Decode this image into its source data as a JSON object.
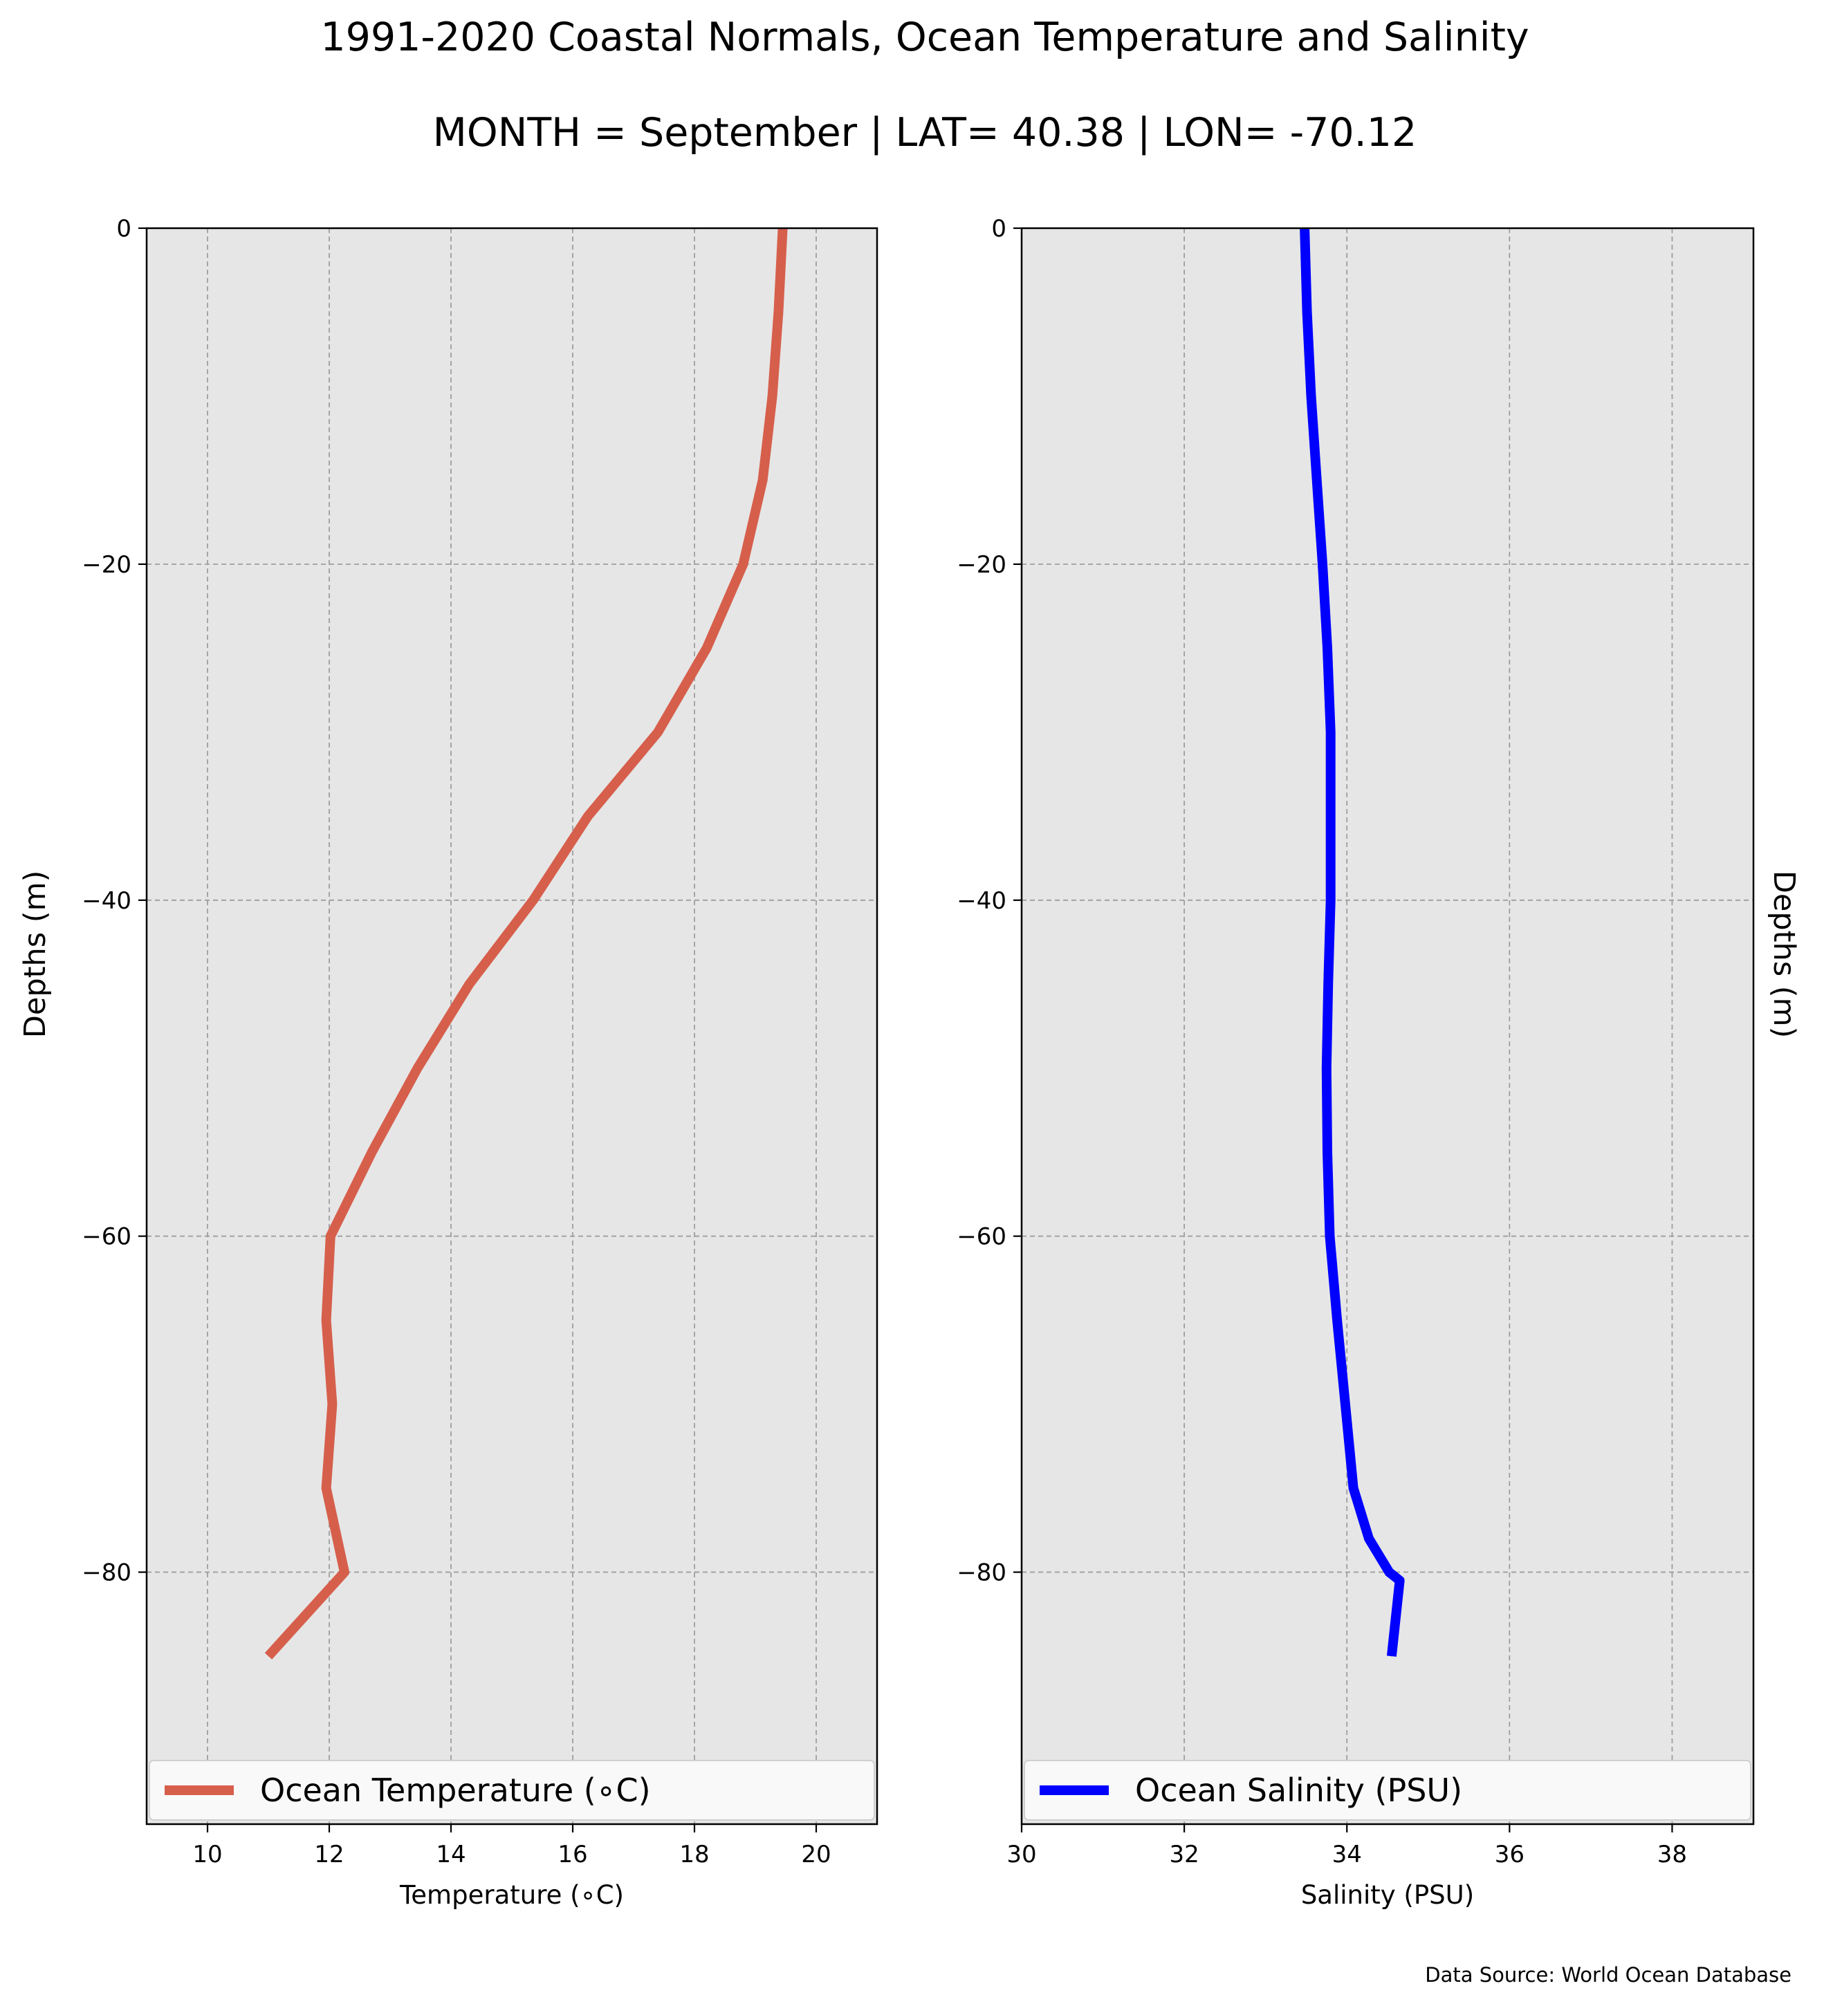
{
  "title": "1991-2020 Coastal Normals, Ocean Temperature and Salinity",
  "subtitle": "MONTH = September | LAT= 40.38 | LON= -70.12",
  "source": "Data Source: World Ocean Database",
  "chart_data": [
    {
      "type": "line",
      "xlabel": "Temperature ($^\\circ$C)",
      "xlabel_display": "Temperature (∘C)",
      "ylabel": "Depths (m)",
      "xlim": [
        9,
        21
      ],
      "ylim": [
        -95,
        0
      ],
      "xticks": [
        10,
        12,
        14,
        16,
        18,
        20
      ],
      "xtick_labels": [
        "10",
        "12",
        "14",
        "16",
        "18",
        "20"
      ],
      "yticks": [
        0,
        -20,
        -40,
        -60,
        -80
      ],
      "ytick_labels": [
        "0",
        "−20",
        "−40",
        "−60",
        "−80"
      ],
      "grid": true,
      "legend_position": "lower center",
      "series": [
        {
          "name": "Ocean Temperature ($^\\circ$C)",
          "name_display": "Ocean Temperature (∘C)",
          "color": "#d65f4c",
          "x": [
            19.45,
            19.38,
            19.28,
            19.12,
            18.8,
            18.2,
            17.4,
            16.25,
            15.35,
            14.3,
            13.45,
            12.7,
            12.02,
            11.95,
            12.05,
            11.95,
            12.25,
            11.0
          ],
          "y": [
            0,
            -5,
            -10,
            -15,
            -20,
            -25,
            -30,
            -35,
            -40,
            -45,
            -50,
            -55,
            -60,
            -65,
            -70,
            -75,
            -80,
            -85
          ]
        }
      ]
    },
    {
      "type": "line",
      "xlabel": "Salinity (PSU)",
      "ylabel": "Depths (m)",
      "xlim": [
        30,
        39
      ],
      "ylim": [
        -95,
        0
      ],
      "xticks": [
        30,
        32,
        34,
        36,
        38
      ],
      "xtick_labels": [
        "30",
        "32",
        "34",
        "36",
        "38"
      ],
      "yticks": [
        0,
        -20,
        -40,
        -60,
        -80
      ],
      "ytick_labels": [
        "0",
        "−20",
        "−40",
        "−60",
        "−80"
      ],
      "grid": true,
      "legend_position": "lower center",
      "series": [
        {
          "name": "Ocean Salinity (PSU)",
          "color": "#0000ff",
          "x": [
            33.48,
            33.51,
            33.56,
            33.63,
            33.7,
            33.76,
            33.8,
            33.8,
            33.8,
            33.77,
            33.75,
            33.76,
            33.79,
            33.88,
            33.98,
            34.08,
            34.27,
            34.52,
            34.65,
            34.55
          ],
          "y": [
            0,
            -5,
            -10,
            -15,
            -20,
            -25,
            -30,
            -35,
            -40,
            -45,
            -50,
            -55,
            -60,
            -65,
            -70,
            -75,
            -78,
            -80,
            -80.5,
            -85
          ]
        }
      ]
    }
  ]
}
